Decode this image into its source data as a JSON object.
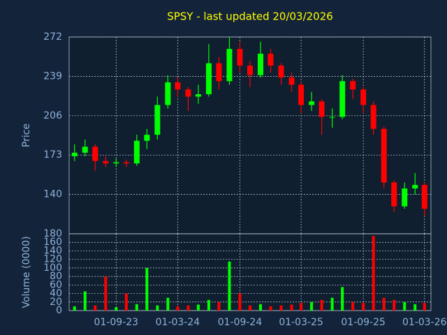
{
  "chart_data": [
    {
      "type": "candlestick",
      "title": "SPSY - last updated 20/03/2026",
      "y_label": "Price",
      "x": [
        "01-05-23",
        "01-06-23",
        "01-07-23",
        "01-08-23",
        "01-09-23",
        "01-10-23",
        "01-11-23",
        "01-12-23",
        "01-01-24",
        "01-02-24",
        "01-03-24",
        "01-04-24",
        "01-05-24",
        "01-06-24",
        "01-07-24",
        "01-08-24",
        "01-09-24",
        "01-10-24",
        "01-11-24",
        "01-12-24",
        "01-01-25",
        "01-02-25",
        "01-03-25",
        "01-04-25",
        "01-05-25",
        "01-06-25",
        "01-07-25",
        "01-08-25",
        "01-09-25",
        "01-10-25",
        "01-11-25",
        "01-12-25",
        "01-01-26",
        "01-02-26",
        "01-03-26"
      ],
      "open": [
        172,
        175,
        180,
        168,
        166,
        167,
        166,
        185,
        190,
        215,
        234,
        228,
        222,
        224,
        250,
        235,
        262,
        248,
        240,
        258,
        248,
        238,
        232,
        215,
        218,
        205,
        205,
        235,
        228,
        215,
        195,
        150,
        130,
        145,
        148
      ],
      "high": [
        182,
        186,
        182,
        172,
        170,
        169,
        190,
        195,
        222,
        240,
        238,
        230,
        232,
        266,
        255,
        272,
        268,
        252,
        268,
        262,
        250,
        242,
        234,
        226,
        220,
        212,
        240,
        237,
        230,
        218,
        197,
        152,
        150,
        158,
        150
      ],
      "low": [
        168,
        172,
        160,
        163,
        163,
        163,
        164,
        178,
        186,
        212,
        222,
        210,
        216,
        222,
        228,
        232,
        242,
        230,
        238,
        242,
        232,
        226,
        208,
        210,
        190,
        196,
        203,
        220,
        208,
        190,
        145,
        125,
        128,
        140,
        122
      ],
      "close": [
        175,
        180,
        168,
        166,
        167,
        166,
        185,
        190,
        215,
        234,
        228,
        222,
        224,
        250,
        235,
        262,
        248,
        240,
        258,
        248,
        238,
        232,
        215,
        218,
        205,
        205,
        235,
        228,
        215,
        195,
        150,
        130,
        145,
        148,
        128
      ],
      "up_color": "#00ff00",
      "down_color": "#ff0000",
      "xlim": [
        "15-04-23",
        "20-03-26"
      ],
      "ylim": [
        107,
        272
      ],
      "yticks": [
        140,
        173,
        206,
        239,
        272
      ],
      "grid": true
    },
    {
      "type": "bar",
      "y_label": "Volume (0000)",
      "x": [
        "01-05-23",
        "01-06-23",
        "01-07-23",
        "01-08-23",
        "01-09-23",
        "01-10-23",
        "01-11-23",
        "01-12-23",
        "01-01-24",
        "01-02-24",
        "01-03-24",
        "01-04-24",
        "01-05-24",
        "01-06-24",
        "01-07-24",
        "01-08-24",
        "01-09-24",
        "01-10-24",
        "01-11-24",
        "01-12-24",
        "01-01-25",
        "01-02-25",
        "01-03-25",
        "01-04-25",
        "01-05-25",
        "01-06-25",
        "01-07-25",
        "01-08-25",
        "01-09-25",
        "01-10-25",
        "01-11-25",
        "01-12-25",
        "01-01-26",
        "01-02-26",
        "01-03-26"
      ],
      "values": [
        10,
        45,
        12,
        80,
        8,
        40,
        15,
        100,
        12,
        30,
        10,
        12,
        14,
        25,
        20,
        115,
        40,
        12,
        15,
        10,
        12,
        14,
        18,
        20,
        25,
        30,
        55,
        20,
        18,
        175,
        30,
        25,
        20,
        15,
        18
      ],
      "xlim": [
        "15-04-23",
        "20-03-26"
      ],
      "xticks": [
        "01-09-23",
        "01-03-24",
        "01-09-24",
        "01-03-25",
        "01-09-25",
        "01-03-26"
      ],
      "ylim": [
        0,
        180
      ],
      "yticks": [
        0,
        20,
        40,
        60,
        80,
        100,
        120,
        140,
        160,
        180
      ],
      "grid": true
    }
  ]
}
